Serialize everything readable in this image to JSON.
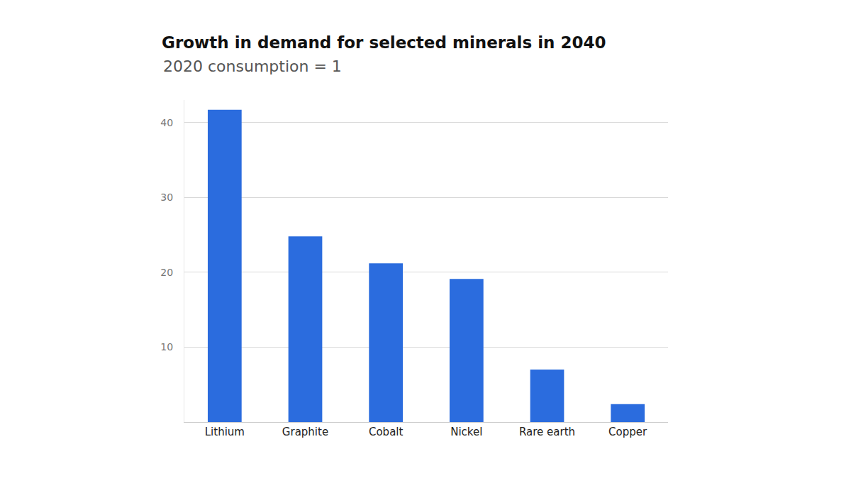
{
  "chart_data": {
    "type": "bar",
    "title": "Growth in demand for selected minerals in 2040",
    "subtitle": "2020 consumption = 1",
    "categories": [
      "Lithium",
      "Graphite",
      "Cobalt",
      "Nickel",
      "Rare earth",
      "Copper"
    ],
    "values": [
      41.7,
      24.8,
      21.2,
      19.1,
      7.0,
      2.4
    ],
    "color": "#2b6cde",
    "ylim": [
      0,
      43
    ],
    "yticks": [
      10,
      20,
      30,
      40
    ],
    "grid": true
  }
}
